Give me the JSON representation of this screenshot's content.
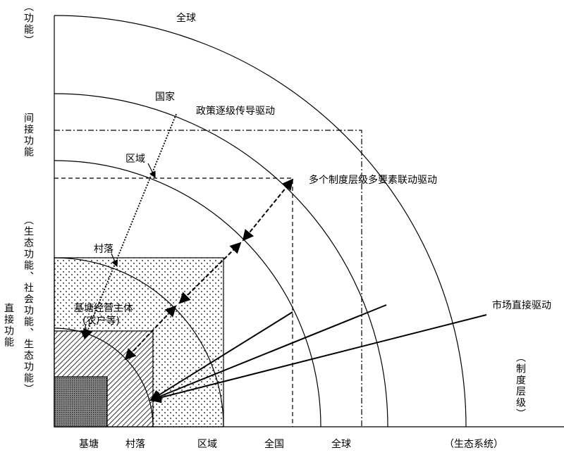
{
  "levels": {
    "global_top": "全球",
    "nation": "国家",
    "region": "区域",
    "village": "村落",
    "pond_subject": "基塘经营主体",
    "pond_subject_note": "(农户等)"
  },
  "drivers": {
    "policy": "政策逐级传导驱动",
    "multi": "多个制度层级多要素联动驱动",
    "market": "市场直接驱动"
  },
  "y_axis": {
    "top": "（功能）",
    "indirect": "间接功能",
    "indirect_note": "（生态功能、社会功能、生态功能）",
    "direct": "直接功能"
  },
  "x_axis": {
    "labels": [
      "基塘",
      "村落",
      "区域",
      "全国",
      "全球"
    ],
    "title": "（生态系统）",
    "right_title": "（制度层级）"
  }
}
